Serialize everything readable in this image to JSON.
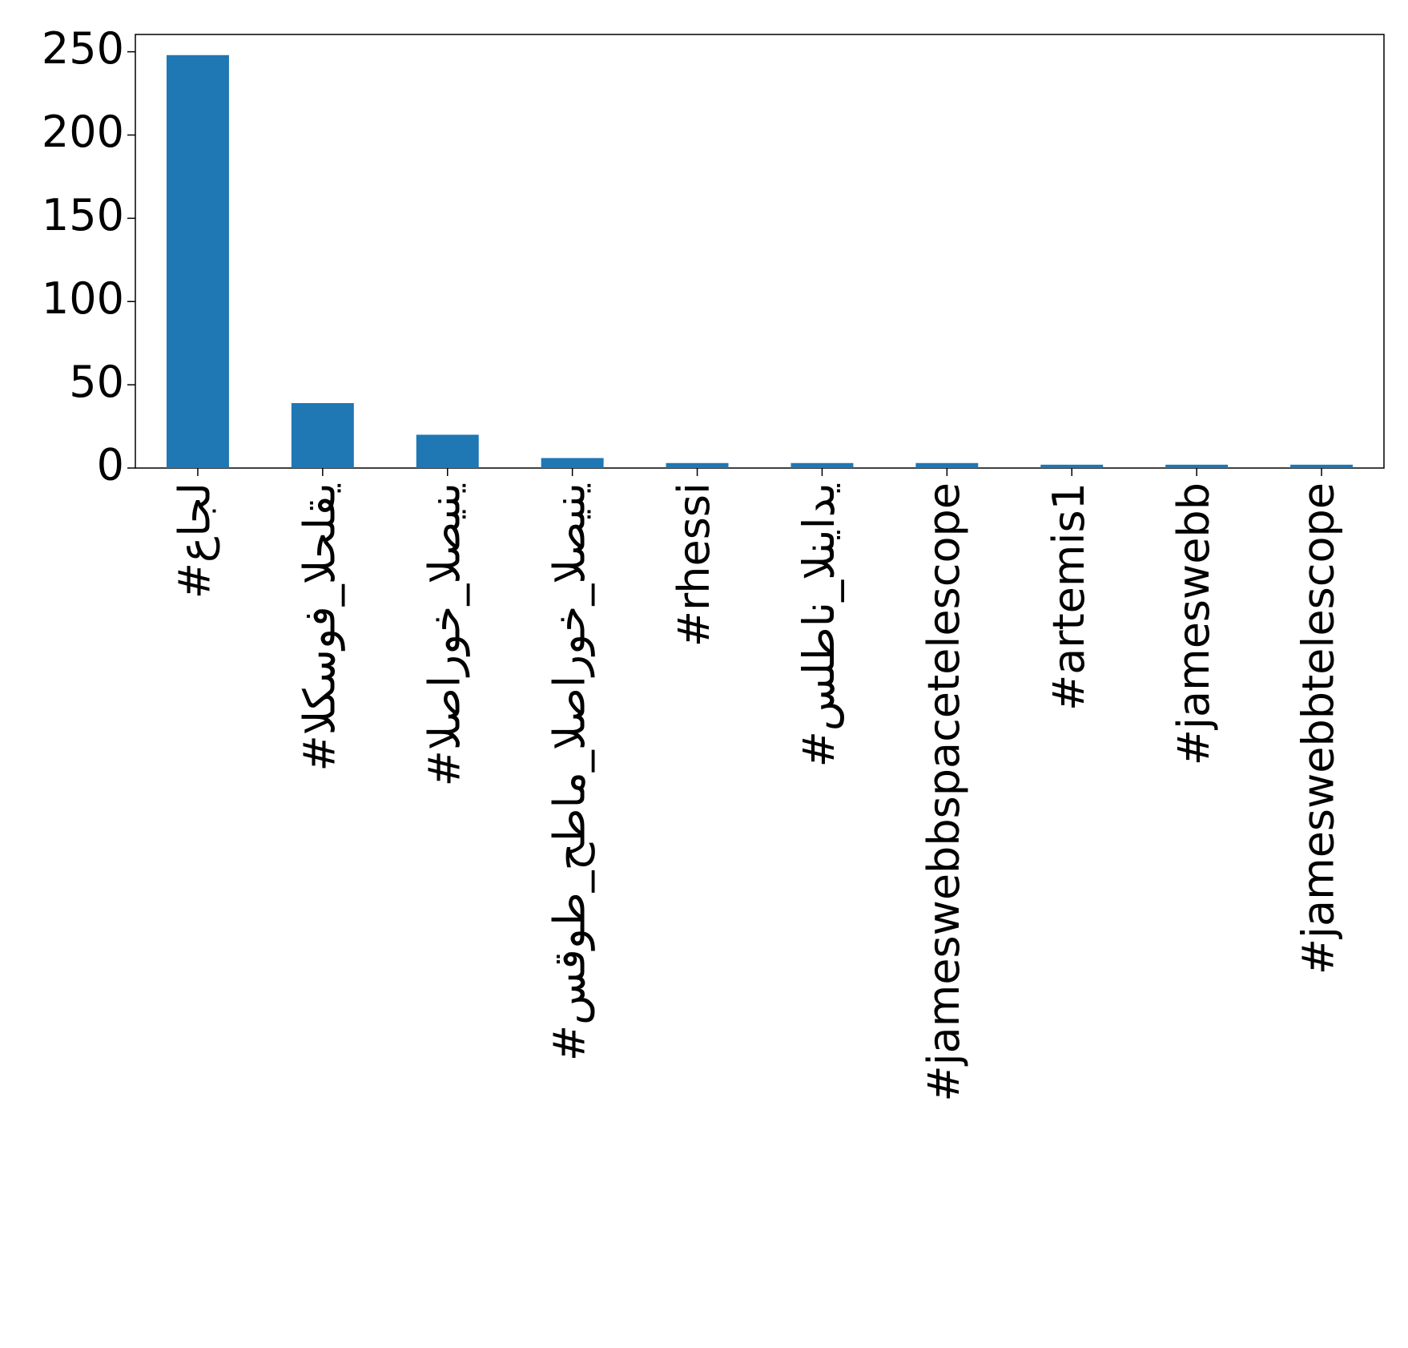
{
  "chart_data": {
    "type": "bar",
    "categories": [
      "#عاجل",
      "#الكسوف_الحلقي",
      "#الصاروخ_الصيني",
      "#سقوط_حطام_الصاروخ_الصيني",
      "#rhessi",
      "#سلطان_النيادي",
      "#jameswebbspacetelescope",
      "#artemis1",
      "#jameswebb",
      "#jameswebbtelescope"
    ],
    "values": [
      248,
      39,
      20,
      6,
      3,
      3,
      3,
      2,
      2,
      2
    ],
    "color": "#1f77b4",
    "ylim": [
      0,
      260.4
    ],
    "yticks": [
      0,
      50,
      100,
      150,
      200,
      250
    ],
    "grid": false
  }
}
